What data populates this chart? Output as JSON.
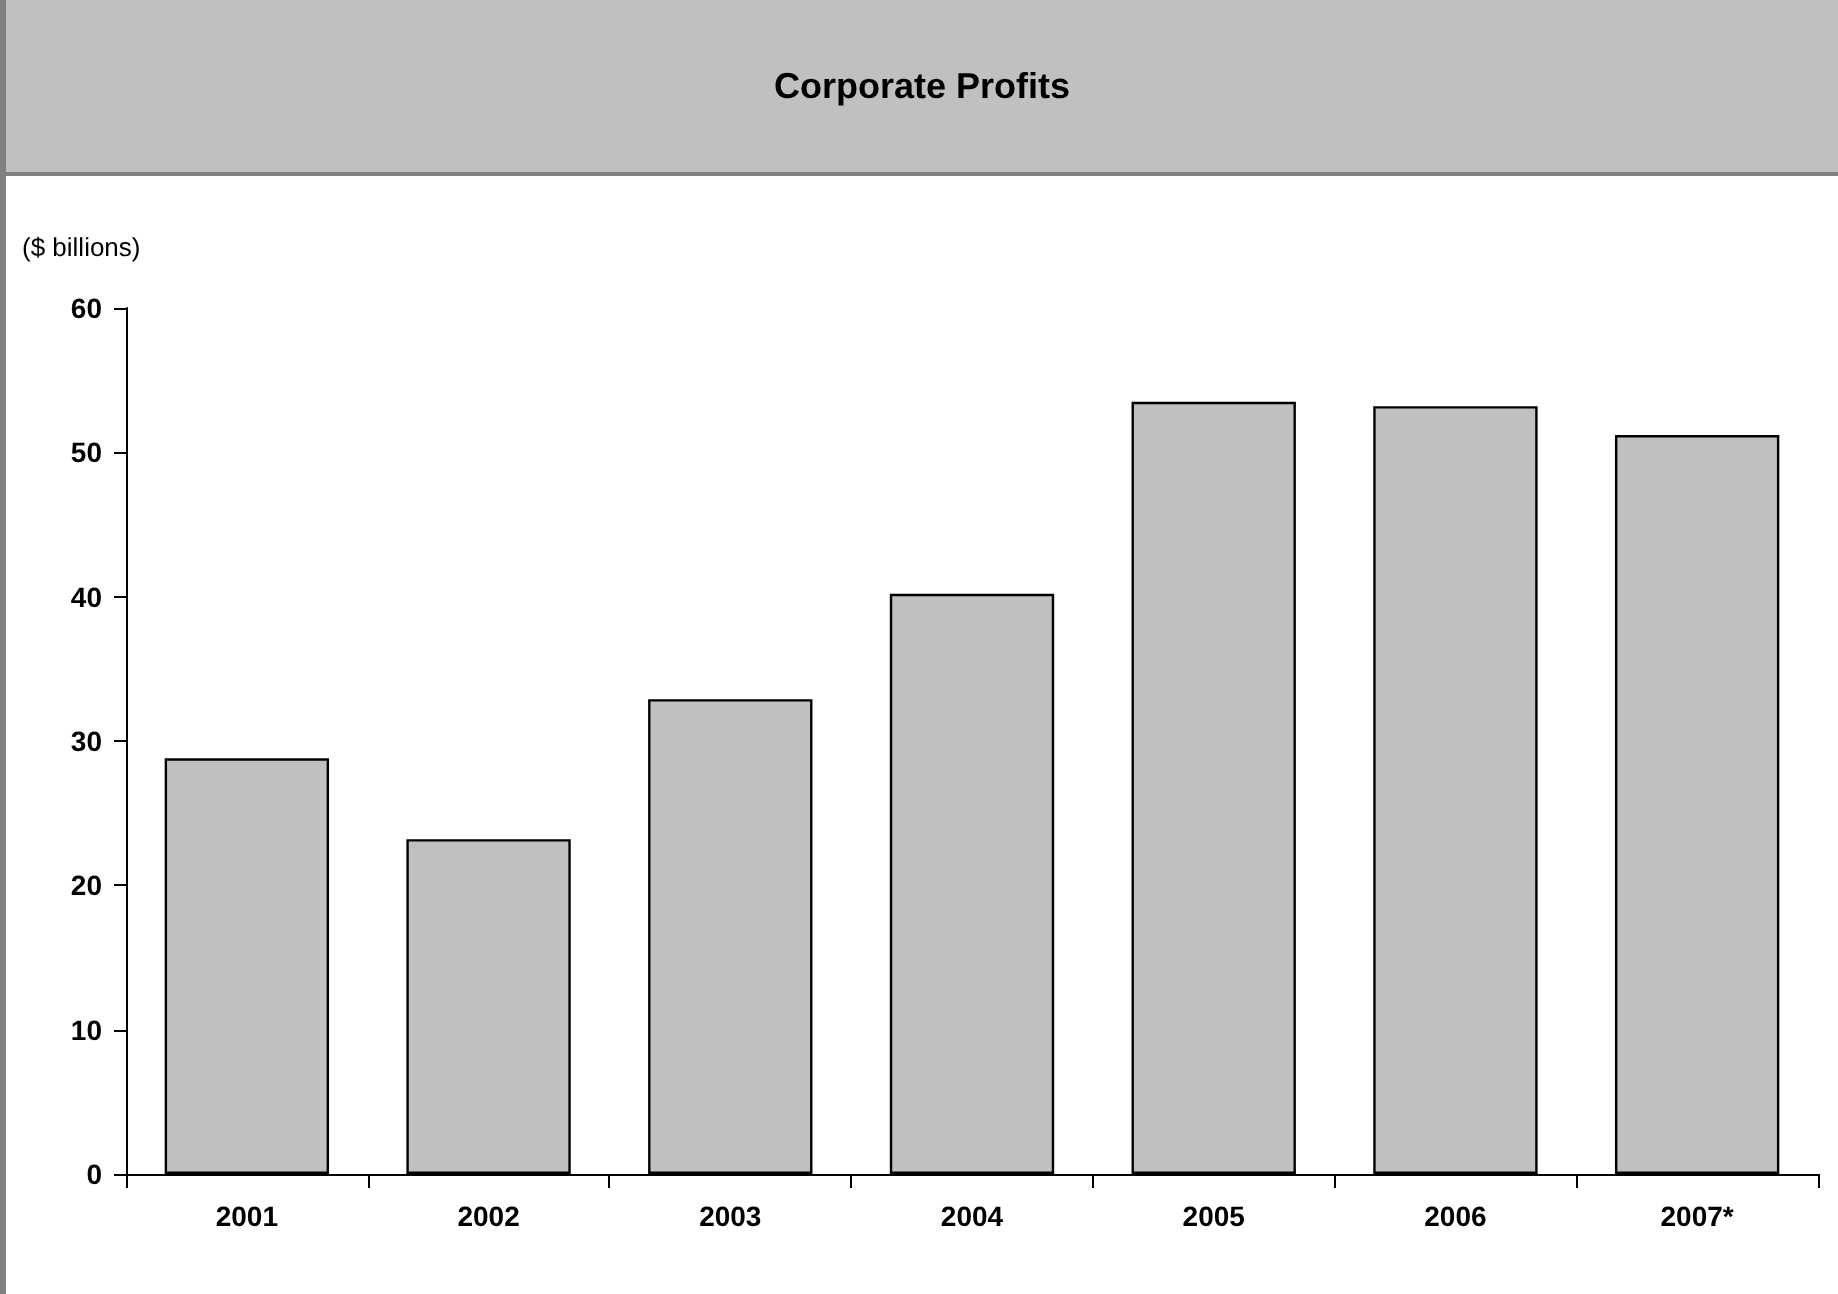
{
  "chart_data": {
    "type": "bar",
    "title": "Corporate Profits",
    "ylabel": "($ billions)",
    "categories": [
      "2001",
      "2002",
      "2003",
      "2004",
      "2005",
      "2006",
      "2007*"
    ],
    "values": [
      28.8,
      23.2,
      32.9,
      40.2,
      53.5,
      53.2,
      51.2
    ],
    "color": "#c0c0c0",
    "ylim": [
      0,
      60
    ],
    "yticks": [
      0,
      10,
      20,
      30,
      40,
      50,
      60
    ],
    "grid": false
  }
}
